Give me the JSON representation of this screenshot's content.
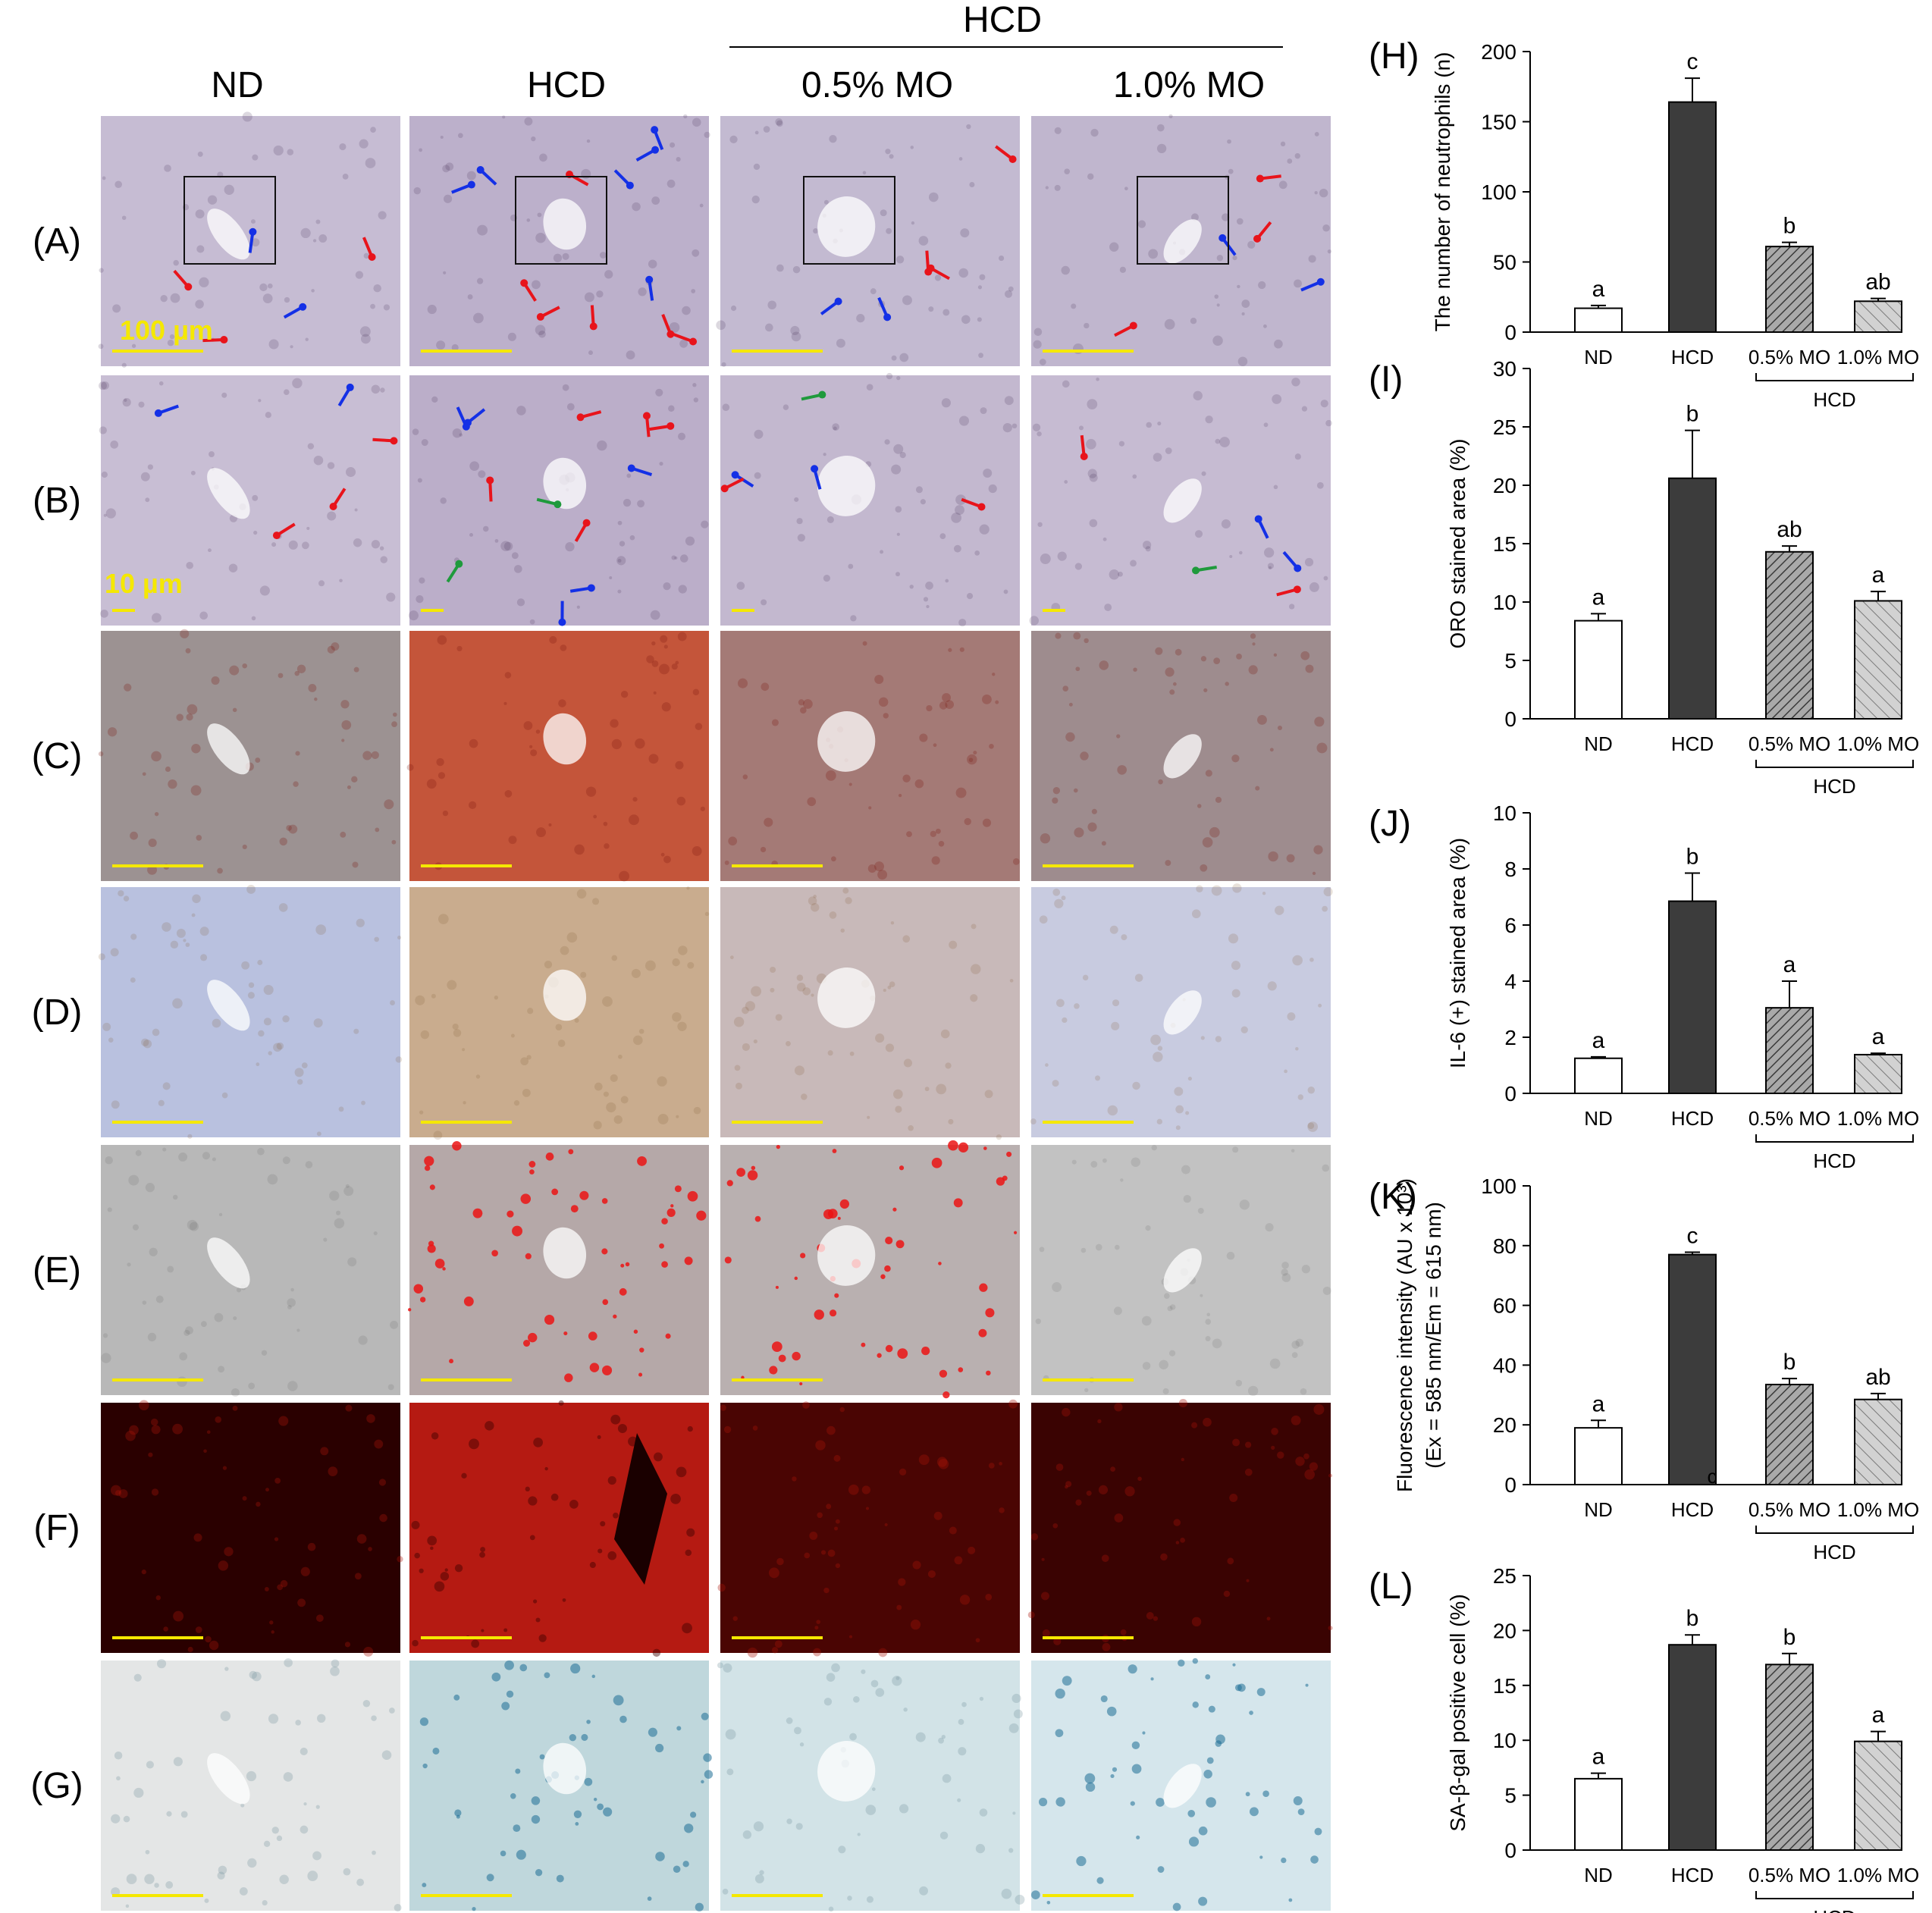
{
  "micrographs": {
    "group_label": "HCD",
    "columns": [
      "ND",
      "HCD",
      "0.5% MO",
      "1.0% MO"
    ],
    "rows": [
      "(A)",
      "(B)",
      "(C)",
      "(D)",
      "(E)",
      "(F)",
      "(G)"
    ],
    "scale_labels": {
      "A": "100 µm",
      "B": "10 µm"
    },
    "tile_tints": {
      "A": [
        "#c6bcd3",
        "#bcb0cb",
        "#c3bad1",
        "#c0b6ce"
      ],
      "B": [
        "#c8bed4",
        "#bbaec9",
        "#c3b8cf",
        "#c6bbd2"
      ],
      "C": [
        "#9c9292",
        "#c4553a",
        "#a47a76",
        "#9e8c8e"
      ],
      "D": [
        "#b9c1df",
        "#c9ac8e",
        "#c8b9b9",
        "#c8cbe0"
      ],
      "E": [
        "#b8b8b8",
        "#b5a8a8",
        "#b9b0b0",
        "#c2c2c2"
      ],
      "F": [
        "#2a0000",
        "#b51a12",
        "#4a0503",
        "#3a0302"
      ],
      "G": [
        "#e4e6e6",
        "#bfd7dc",
        "#d2e3e7",
        "#d5e6ec"
      ]
    },
    "arrow_colors": {
      "red": "#e8141b",
      "blue": "#1430e6",
      "green": "#1f9a3c"
    }
  },
  "chart_data": [
    {
      "panel": "(H)",
      "type": "bar",
      "ylabel": "The number of neutrophils (n)",
      "ylim": [
        0,
        200
      ],
      "yticks": [
        0,
        50,
        100,
        150,
        200
      ],
      "categories": [
        "ND",
        "HCD",
        "0.5% MO",
        "1.0% MO"
      ],
      "group_label": "HCD",
      "values": [
        17,
        164,
        61,
        22
      ],
      "errors": [
        2,
        17,
        3,
        2
      ],
      "letters": [
        "a",
        "c",
        "b",
        "ab"
      ]
    },
    {
      "panel": "(I)",
      "type": "bar",
      "ylabel": "ORO stained area (%)",
      "ylim": [
        0,
        30
      ],
      "yticks": [
        0,
        5,
        10,
        15,
        20,
        25,
        30
      ],
      "categories": [
        "ND",
        "HCD",
        "0.5% MO",
        "1.0% MO"
      ],
      "group_label": "HCD",
      "values": [
        8.4,
        20.6,
        14.3,
        10.1
      ],
      "errors": [
        0.6,
        4.1,
        0.5,
        0.8
      ],
      "letters": [
        "a",
        "b",
        "ab",
        "a"
      ]
    },
    {
      "panel": "(J)",
      "type": "bar",
      "ylabel": "IL-6 (+) stained area (%)",
      "ylim": [
        0,
        10
      ],
      "yticks": [
        0,
        2,
        4,
        6,
        8,
        10
      ],
      "categories": [
        "ND",
        "HCD",
        "0.5% MO",
        "1.0% MO"
      ],
      "group_label": "HCD",
      "values": [
        1.25,
        6.85,
        3.05,
        1.38
      ],
      "errors": [
        0.05,
        1.0,
        0.95,
        0.05
      ],
      "letters": [
        "a",
        "b",
        "a",
        "a"
      ]
    },
    {
      "panel": "(K)",
      "type": "bar",
      "ylabel": "Fluorescence intensity (AU x 10³)",
      "ylabel2": "(Ex = 585 nm/Em = 615 nm)",
      "ylim": [
        0,
        100
      ],
      "yticks": [
        0,
        20,
        40,
        60,
        80,
        100
      ],
      "categories": [
        "ND",
        "HCD",
        "0.5% MO",
        "1.0% MO"
      ],
      "group_label": "HCD",
      "values": [
        19,
        77,
        33.5,
        28.5
      ],
      "errors": [
        2.5,
        0.8,
        2.0,
        2.0
      ],
      "letters": [
        "a",
        "c",
        "b",
        "ab"
      ],
      "stray_label": "c"
    },
    {
      "panel": "(L)",
      "type": "bar",
      "ylabel": "SA-β-gal positive cell (%)",
      "ylim": [
        0,
        25
      ],
      "yticks": [
        0,
        5,
        10,
        15,
        20,
        25
      ],
      "categories": [
        "ND",
        "HCD",
        "0.5% MO",
        "1.0% MO"
      ],
      "group_label": "HCD",
      "values": [
        6.5,
        18.7,
        16.9,
        9.9
      ],
      "errors": [
        0.5,
        0.9,
        1.0,
        0.9
      ],
      "letters": [
        "a",
        "b",
        "b",
        "a"
      ]
    }
  ]
}
